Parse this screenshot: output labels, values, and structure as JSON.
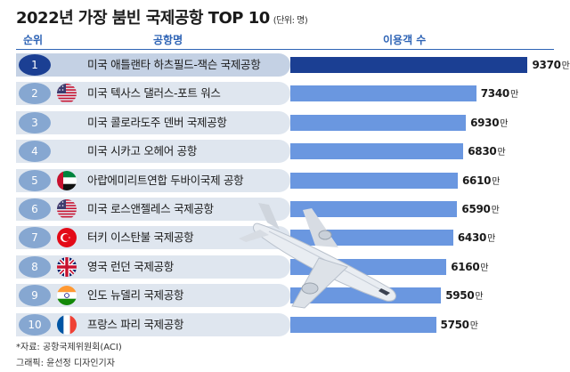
{
  "title": "2022년 가장 붐빈 국제공항 TOP 10",
  "unit_note": "(단위: 명)",
  "headers": {
    "rank": "순위",
    "name": "공항명",
    "value": "이용객 수"
  },
  "value_unit": "만",
  "chart_data": {
    "type": "bar",
    "orientation": "horizontal",
    "title": "2022년 가장 붐빈 국제공항 TOP 10",
    "unit": "명",
    "ranks": [
      "1",
      "2",
      "3",
      "4",
      "5",
      "6",
      "7",
      "8",
      "9",
      "10"
    ],
    "categories": [
      "미국 애틀랜타 하츠필드-잭슨 국제공항",
      "미국 텍사스 댈러스-포트 워스",
      "미국 콜로라도주 덴버 국제공항",
      "미국 시카고 오헤어 공항",
      "아랍에미리트연합 두바이국제 공항",
      "미국 로스앤젤레스 국제공항",
      "터키 이스탄불 국제공항",
      "영국 런던 국제공항",
      "인도 뉴델리 국제공항",
      "프랑스 파리 국제공항"
    ],
    "values": [
      9370,
      7340,
      6930,
      6830,
      6610,
      6590,
      6430,
      6160,
      5950,
      5750
    ],
    "value_labels": [
      "9370",
      "7340",
      "6930",
      "6830",
      "6610",
      "6590",
      "6430",
      "6160",
      "5950",
      "5750"
    ],
    "flags": [
      "",
      "usa-flag-icon",
      "",
      "",
      "uae-flag-icon",
      "usa-flag-icon",
      "turkey-flag-icon",
      "uk-flag-icon",
      "india-flag-icon",
      "france-flag-icon"
    ],
    "highlight_index": 0,
    "colors": {
      "highlight": "#1b3f93",
      "bar": "#6a97e0",
      "rank_badge": "#86a7d1",
      "row_bg": "#dfe6ef"
    }
  },
  "footer": {
    "source": "*자료: 공항국제위원회(ACI)",
    "credit": "그래픽: 윤선정 디자인기자"
  }
}
